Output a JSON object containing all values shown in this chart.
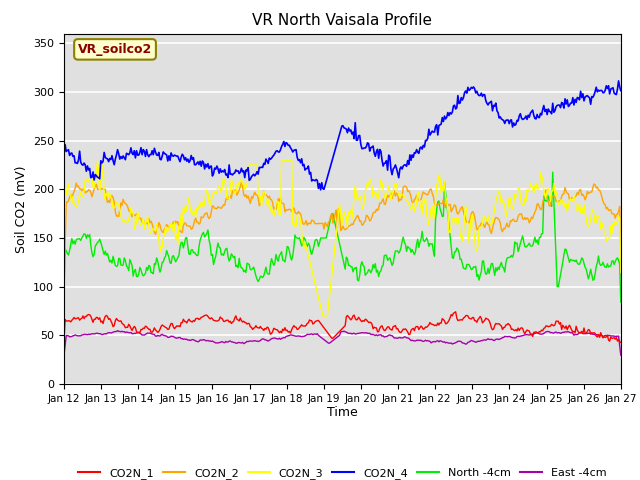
{
  "title": "VR North Vaisala Profile",
  "xlabel": "Time",
  "ylabel": "Soil CO2 (mV)",
  "ylim": [
    0,
    360
  ],
  "yticks": [
    0,
    50,
    100,
    150,
    200,
    250,
    300,
    350
  ],
  "annotation_text": "VR_soilco2",
  "annotation_color": "#8B0000",
  "annotation_bg": "#FFFFCC",
  "plot_bg": "#E0E0E0",
  "ax_bg": "#E0E0E0",
  "grid_color": "#FFFFFF",
  "colors": {
    "CO2N_1": "#FF0000",
    "CO2N_2": "#FFA500",
    "CO2N_3": "#FFFF00",
    "CO2N_4": "#0000FF",
    "North_4cm": "#00EE00",
    "East_4cm": "#AA00AA"
  },
  "legend_labels": [
    "CO2N_1",
    "CO2N_2",
    "CO2N_3",
    "CO2N_4",
    "North -4cm",
    "East -4cm"
  ],
  "n_points": 500,
  "x_start": 12,
  "x_end": 27,
  "xtick_days": [
    12,
    13,
    14,
    15,
    16,
    17,
    18,
    19,
    20,
    21,
    22,
    23,
    24,
    25,
    26,
    27
  ]
}
